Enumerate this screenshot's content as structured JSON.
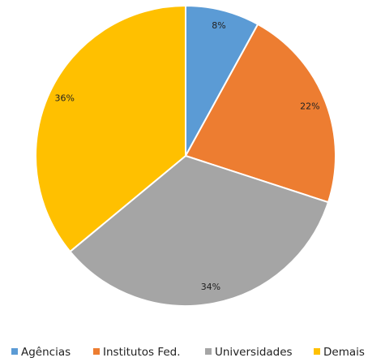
{
  "chart_data": {
    "type": "pie",
    "categories": [
      "Agências",
      "Institutos Fed.",
      "Universidades",
      "Demais"
    ],
    "values": [
      8,
      22,
      34,
      36
    ],
    "value_labels": [
      "8%",
      "22%",
      "34%",
      "36%"
    ],
    "colors": [
      "#5b9bd5",
      "#ed7d31",
      "#a5a5a5",
      "#ffc000"
    ],
    "legend": "bottom"
  }
}
